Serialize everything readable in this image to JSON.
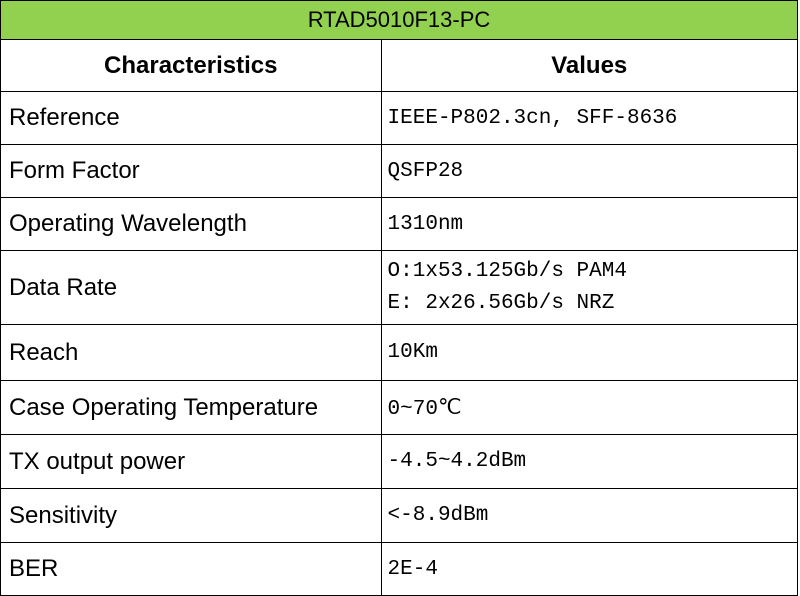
{
  "header": {
    "title": "RTAD5010F13-PC"
  },
  "table": {
    "columns": [
      "Characteristics",
      "Values"
    ],
    "rows": [
      [
        "Reference",
        "IEEE-P802.3cn, SFF-8636"
      ],
      [
        "Form Factor",
        "QSFP28"
      ],
      [
        "Operating Wavelength",
        "1310nm"
      ],
      [
        "Data Rate",
        [
          "O:1x53.125Gb/s PAM4",
          "E: 2x26.56Gb/s NRZ"
        ]
      ],
      [
        "Reach",
        "10Km"
      ],
      [
        "Case Operating Temperature",
        "0~70℃"
      ],
      [
        "TX output power",
        "-4.5~4.2dBm"
      ],
      [
        "Sensitivity",
        "<-8.9dBm"
      ],
      [
        "BER",
        "2E-4"
      ]
    ]
  }
}
